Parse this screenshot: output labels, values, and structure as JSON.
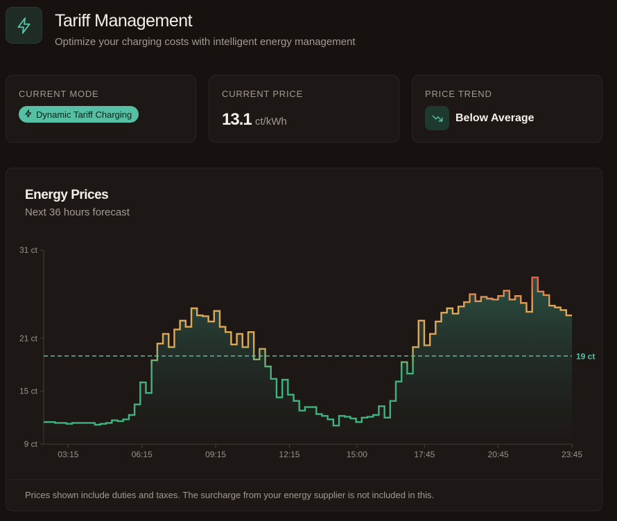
{
  "header": {
    "icon": "lightning-icon",
    "title": "Tariff Management",
    "subtitle": "Optimize your charging costs with intelligent energy management"
  },
  "stats": {
    "mode": {
      "label": "CURRENT MODE",
      "badge": "Dynamic Tariff Charging",
      "badge_icon": "lightning-icon"
    },
    "price": {
      "label": "CURRENT PRICE",
      "value": "13.1",
      "unit": "ct/kWh"
    },
    "trend": {
      "label": "PRICE TREND",
      "icon": "trending-down-icon",
      "value": "Below Average"
    }
  },
  "chart": {
    "title": "Energy Prices",
    "subtitle": "Next 36 hours forecast",
    "footer": "Prices shown include duties and taxes. The surcharge from your energy supplier is not included in this."
  },
  "colors": {
    "accent": "#55c0a4",
    "low": "#3fb47f",
    "mid": "#e0a95a",
    "high": "#e5604a",
    "background": "#17120f",
    "card": "#1d1816"
  },
  "chart_data": {
    "type": "line",
    "step": true,
    "title": "Energy Prices",
    "subtitle": "Next 36 hours forecast",
    "x_start": "02:15",
    "x_end": "23:45",
    "interval_minutes": 15,
    "xticks": [
      "03:15",
      "06:15",
      "09:15",
      "12:15",
      "15:00",
      "17:45",
      "20:45",
      "23:45"
    ],
    "yticks": [
      "9 ct",
      "15 ct",
      "21 ct",
      "31 ct"
    ],
    "ylim": [
      9,
      31
    ],
    "reference_line": {
      "value": 19,
      "label": "19 ct"
    },
    "values": [
      11.5,
      11.5,
      11.4,
      11.4,
      11.3,
      11.4,
      11.4,
      11.4,
      11.4,
      11.2,
      11.3,
      11.4,
      11.7,
      11.6,
      11.8,
      12.3,
      13.5,
      16.0,
      14.8,
      18.5,
      20.4,
      21.5,
      20.0,
      22.0,
      23.0,
      22.3,
      24.4,
      23.6,
      23.5,
      22.9,
      24.1,
      22.3,
      21.7,
      20.3,
      21.5,
      20.0,
      21.7,
      18.6,
      19.8,
      17.8,
      16.4,
      14.3,
      16.3,
      14.6,
      13.9,
      12.8,
      13.2,
      13.2,
      12.4,
      12.2,
      11.8,
      11.1,
      12.2,
      12.1,
      11.9,
      11.5,
      12.0,
      12.1,
      12.3,
      13.3,
      12.0,
      13.9,
      16.1,
      18.3,
      17.0,
      20.0,
      23.0,
      20.2,
      21.5,
      22.9,
      23.9,
      24.4,
      23.8,
      24.6,
      25.1,
      26.0,
      25.2,
      25.7,
      25.5,
      25.4,
      25.8,
      26.4,
      25.4,
      25.8,
      25.0,
      24.0,
      27.9,
      26.3,
      25.9,
      24.7,
      24.5,
      24.2,
      23.6
    ]
  }
}
